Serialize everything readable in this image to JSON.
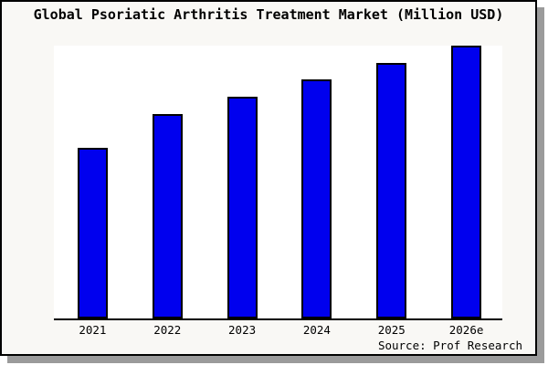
{
  "title": "Global Psoriatic Arthritis Treatment Market (Million USD)",
  "source_note": "Source: Prof Research",
  "colors": {
    "canvas_bg": "#f9f8f5",
    "plot_bg": "#ffffff",
    "bar_fill": "#0000ee",
    "bar_border": "#000000",
    "frame_border": "#000000",
    "frame_shadow": "#9b9b9b",
    "text": "#000000"
  },
  "chart_data": {
    "type": "bar",
    "title": "Global Psoriatic Arthritis Treatment Market (Million USD)",
    "categories": [
      "2021",
      "2022",
      "2023",
      "2024",
      "2025",
      "2026e"
    ],
    "values_pct_of_max": [
      62.5,
      74.9,
      81.3,
      87.6,
      93.6,
      100.0
    ],
    "xlabel": "",
    "ylabel": "",
    "y_axis_visible": false,
    "y_tick_labels": [],
    "gridlines": false,
    "legend": false,
    "bar_color": "#0000ee",
    "bar_border_color": "#000000",
    "plot_bg": "#ffffff",
    "source_note": "Source: Prof Research"
  }
}
